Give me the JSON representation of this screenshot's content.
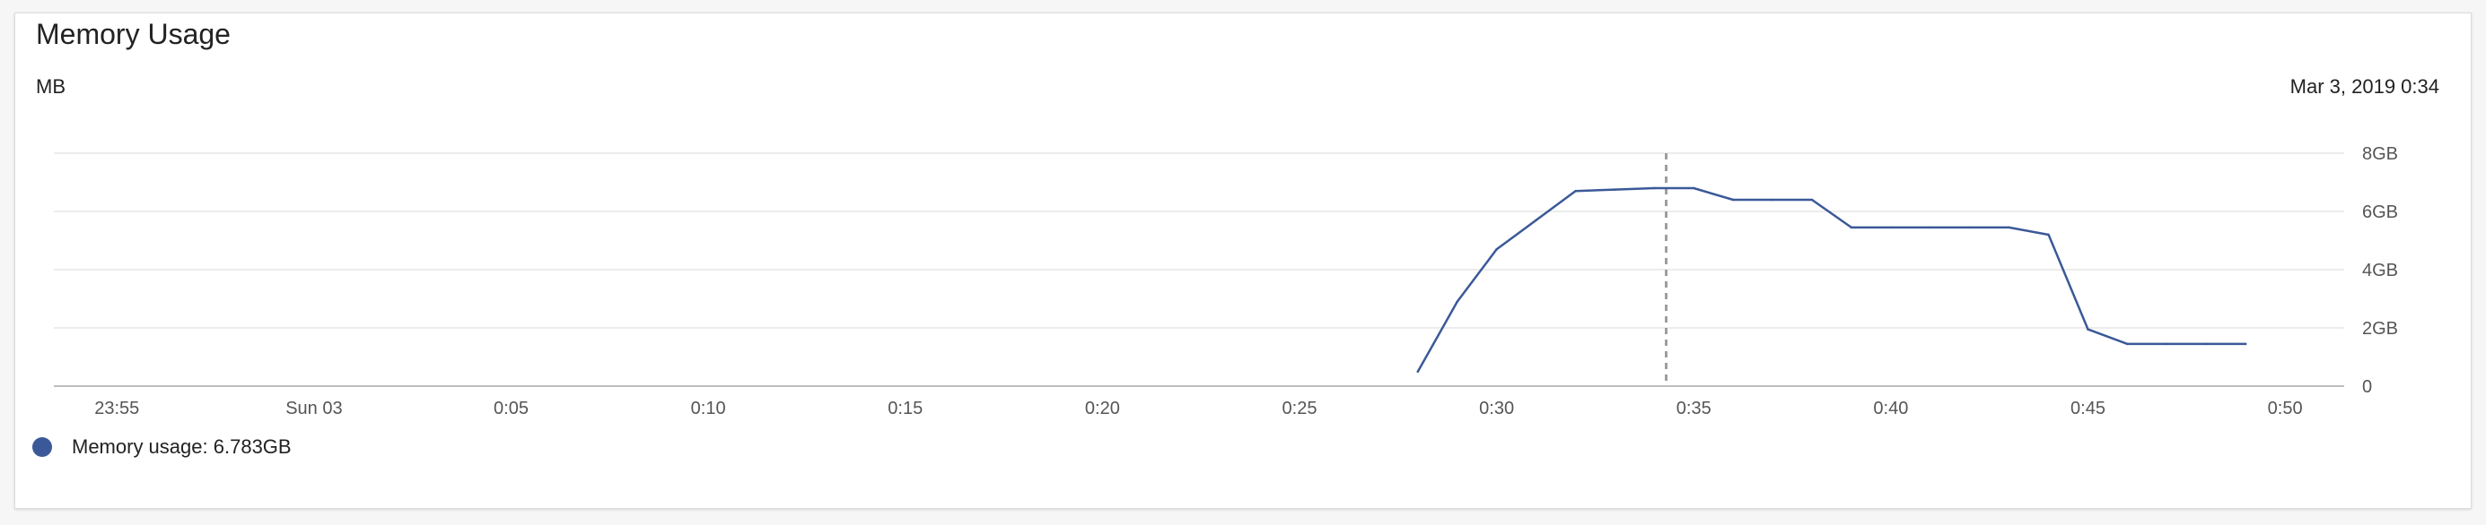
{
  "title": "Memory Usage",
  "unit_label": "MB",
  "hover_timestamp": "Mar 3, 2019 0:34",
  "legend": {
    "label": "Memory usage",
    "value": "6.783GB",
    "color": "#3b5998"
  },
  "chart_data": {
    "type": "line",
    "title": "Memory Usage",
    "ylabel": "MB",
    "xlim": [
      -6.6,
      51.5
    ],
    "ylim": [
      0,
      8
    ],
    "grid": true,
    "x_axis": {
      "tick_positions": [
        -5,
        0,
        5,
        10,
        15,
        20,
        25,
        30,
        35,
        40,
        45,
        50
      ],
      "tick_labels": [
        "23:55",
        "Sun 03",
        "0:05",
        "0:10",
        "0:15",
        "0:20",
        "0:25",
        "0:30",
        "0:35",
        "0:40",
        "0:45",
        "0:50"
      ]
    },
    "y_axis": {
      "tick_values": [
        0,
        2,
        4,
        6,
        8
      ],
      "tick_labels": [
        "0",
        "2GB",
        "4GB",
        "6GB",
        "8GB"
      ],
      "side": "right"
    },
    "hover_x": 34.3,
    "series": [
      {
        "name": "Memory usage",
        "color": "#3b5998",
        "x": [
          28,
          29,
          30,
          31,
          32,
          33,
          34,
          35,
          36,
          37,
          38,
          39,
          40,
          41,
          42,
          43,
          44,
          45,
          46,
          47,
          48,
          49
        ],
        "y": [
          0.5,
          2.9,
          4.7,
          5.7,
          6.7,
          6.75,
          6.8,
          6.8,
          6.4,
          6.4,
          6.4,
          5.45,
          5.45,
          5.45,
          5.45,
          5.45,
          5.2,
          1.95,
          1.45,
          1.45,
          1.45,
          1.45
        ]
      }
    ]
  }
}
